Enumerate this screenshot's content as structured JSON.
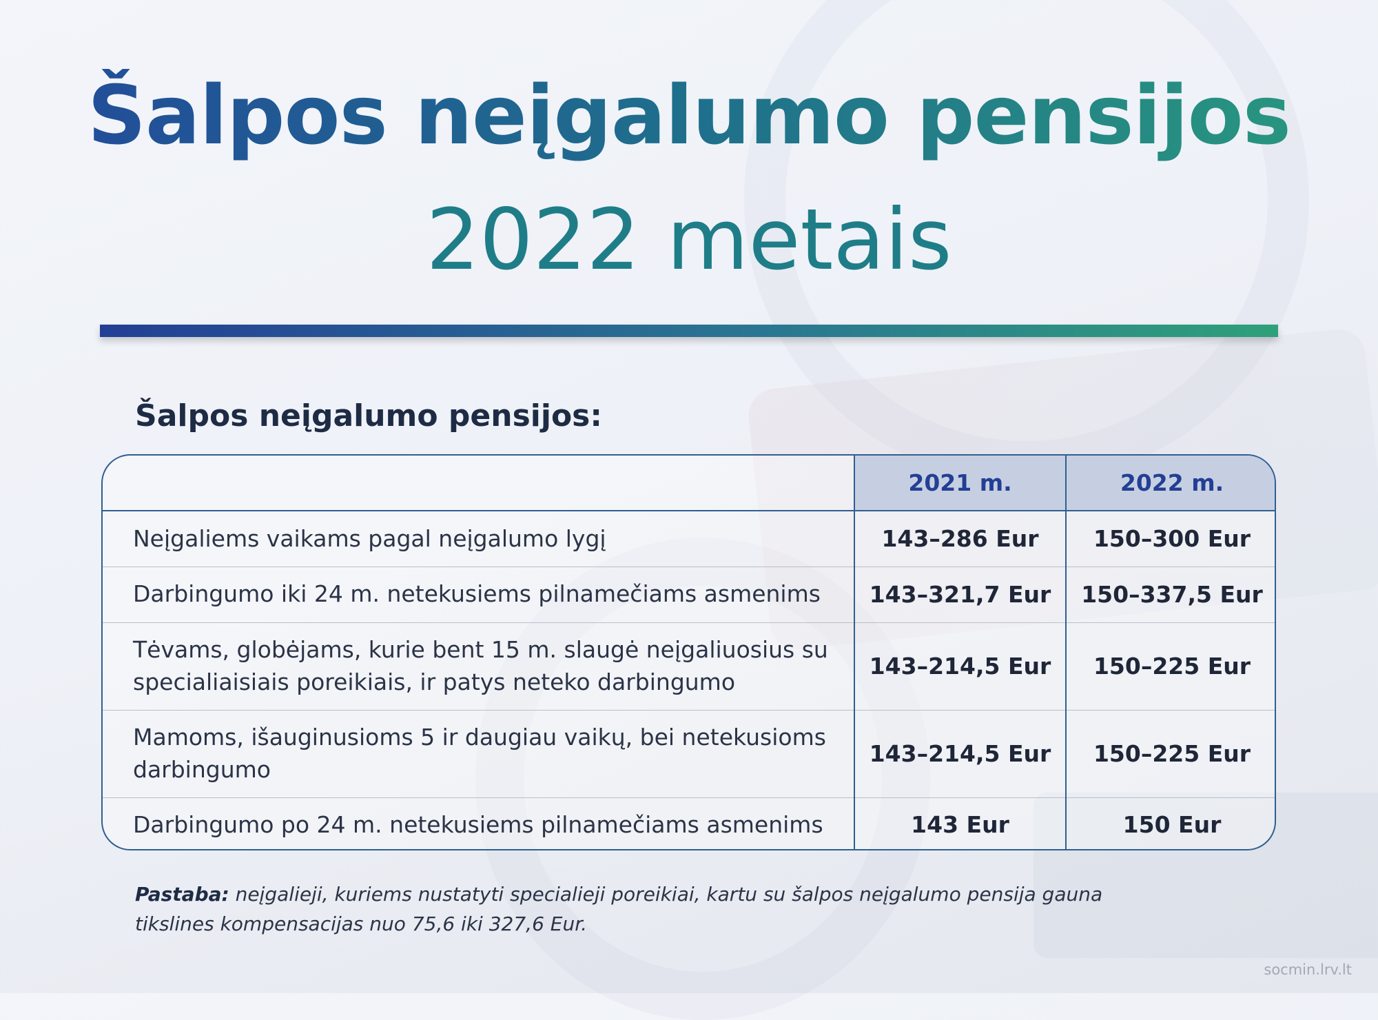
{
  "title": {
    "main": "Šalpos neįgalumo pensijos",
    "sub": "2022 metais"
  },
  "section_title": "Šalpos neįgalumo pensijos:",
  "table": {
    "headers": [
      "",
      "2021 m.",
      "2022 m."
    ],
    "rows": [
      {
        "label": "Neįgaliems vaikams pagal neįgalumo lygį",
        "y2021": "143–286 Eur",
        "y2022": "150–300 Eur"
      },
      {
        "label": "Darbingumo iki 24 m. netekusiems pilnamečiams asmenims",
        "y2021": "143–321,7 Eur",
        "y2022": "150–337,5 Eur"
      },
      {
        "label": "Tėvams, globėjams, kurie bent 15 m. slaugė neįgaliuosius su specialiaisiais poreikiais, ir patys neteko darbingumo",
        "y2021": "143–214,5 Eur",
        "y2022": "150–225 Eur"
      },
      {
        "label": "Mamoms, išauginusioms 5 ir daugiau vaikų, bei netekusioms darbingumo",
        "y2021": "143–214,5 Eur",
        "y2022": "150–225 Eur"
      },
      {
        "label": "Darbingumo po 24 m. netekusiems pilnamečiams asmenims",
        "y2021": "143 Eur",
        "y2022": "150 Eur"
      }
    ]
  },
  "note": {
    "label": "Pastaba:",
    "text": " neįgalieji, kuriems nustatyti specialieji poreikiai, kartu su šalpos neįgalumo pensija gauna tikslines kompensacijas nuo 75,6 iki 327,6 Eur."
  },
  "source": "socmin.lrv.lt",
  "colors": {
    "title_gradient_start": "#224a9a",
    "title_gradient_end": "#2a9a7e",
    "subtitle": "#1f7d88",
    "table_border": "#2f5f90",
    "header_bg": "#c6cfe2",
    "header_text": "#233f94"
  }
}
